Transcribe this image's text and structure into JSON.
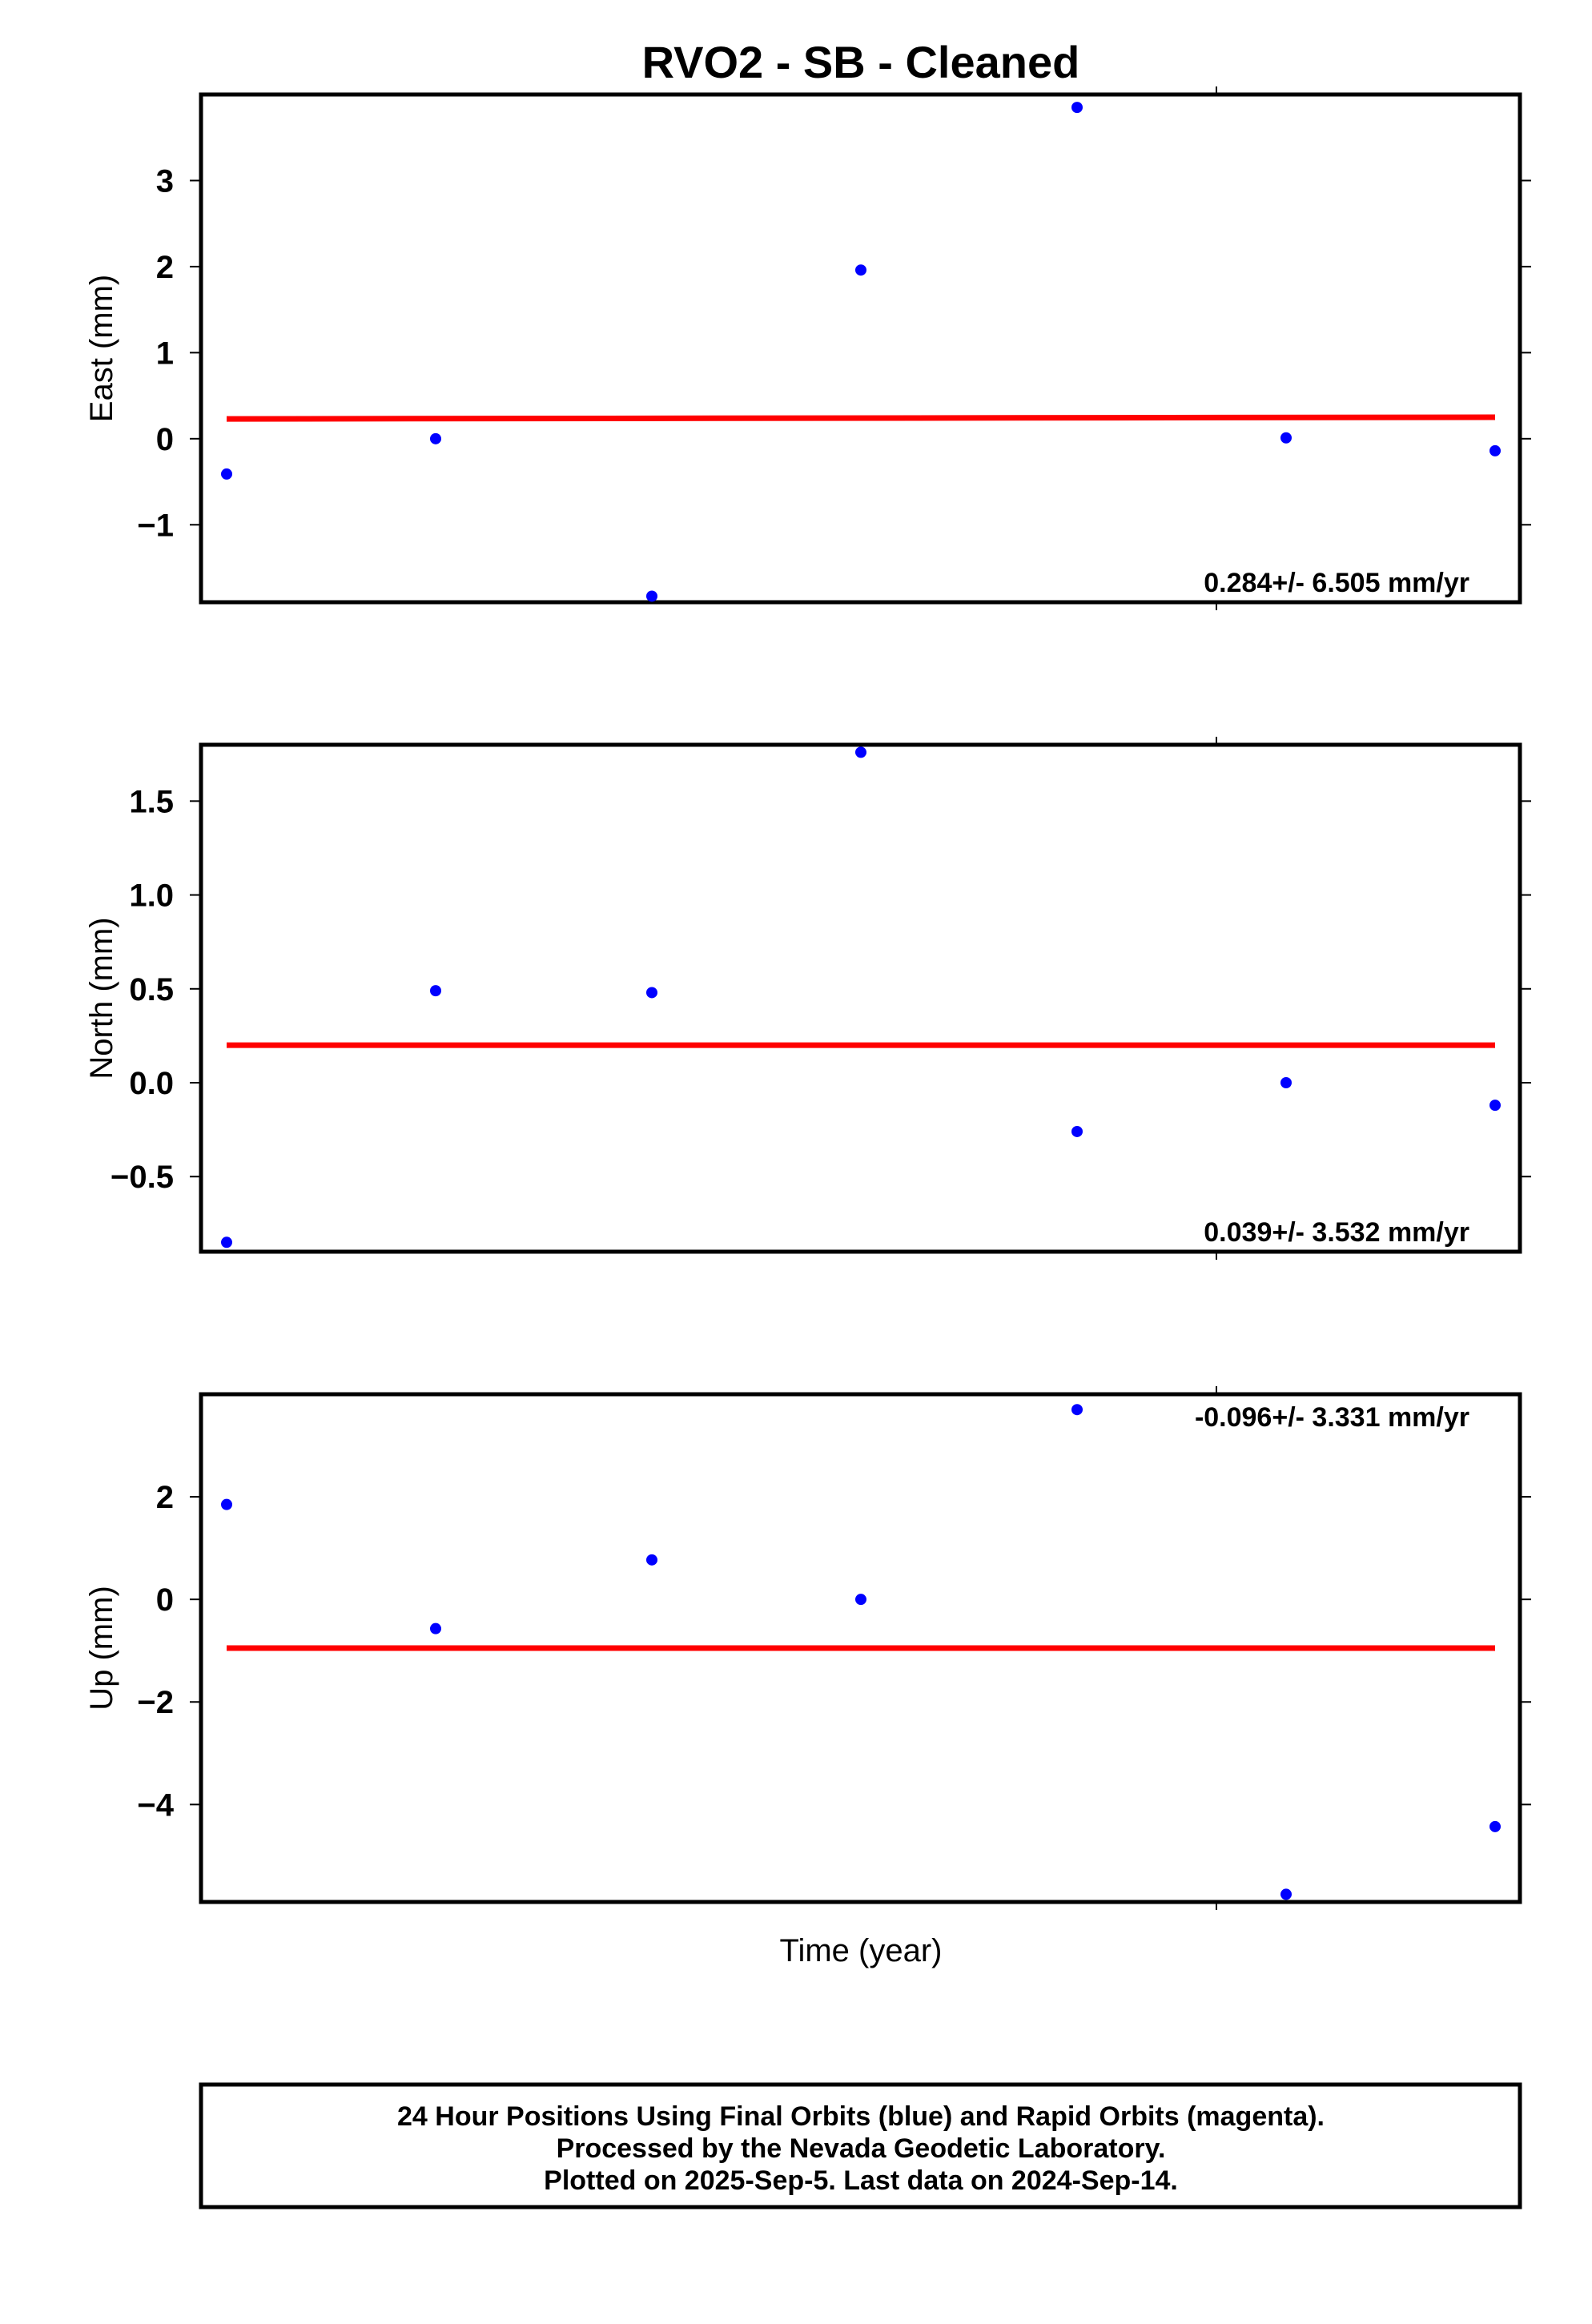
{
  "title": "RVO2  - SB - Cleaned",
  "xlabel": "Time (year)",
  "footer": [
    "24 Hour Positions Using Final Orbits (blue) and Rapid Orbits (magenta).",
    "Processed by the Nevada Geodetic Laboratory.",
    "Plotted on 2025-Sep-5. Last data on 2024-Sep-14."
  ],
  "colors": {
    "points": "#0000ff",
    "fit": "#ff0000",
    "frame": "#000000"
  },
  "chart_data": [
    {
      "type": "scatter",
      "ylabel": "East (mm)",
      "ylim": [
        -1.9,
        4.0
      ],
      "yticks": [
        -1,
        0,
        1,
        2,
        3
      ],
      "ytick_labels": [
        "−1",
        "0",
        "1",
        "2",
        "3"
      ],
      "rate_label": "0.284+/- 6.505 mm/yr",
      "rate_position": "bottom-right",
      "values": [
        -0.41,
        0.0,
        -1.83,
        1.96,
        3.85,
        0.01,
        -0.14
      ],
      "fit": [
        0.23,
        0.25
      ]
    },
    {
      "type": "scatter",
      "ylabel": "North (mm)",
      "ylim": [
        -0.9,
        1.8
      ],
      "yticks": [
        -0.5,
        0.0,
        0.5,
        1.0,
        1.5
      ],
      "ytick_labels": [
        "−0.5",
        "0.0",
        "0.5",
        "1.0",
        "1.5"
      ],
      "rate_label": "0.039+/- 3.532 mm/yr",
      "rate_position": "bottom-right",
      "values": [
        -0.85,
        0.49,
        0.48,
        1.76,
        -0.26,
        0.0,
        -0.12
      ],
      "fit": [
        0.2,
        0.2
      ]
    },
    {
      "type": "scatter",
      "ylabel": "Up (mm)",
      "ylim": [
        -5.9,
        4.0
      ],
      "yticks": [
        -4,
        -2,
        0,
        2
      ],
      "ytick_labels": [
        "−4",
        "−2",
        "0",
        "2"
      ],
      "rate_label": "-0.096+/- 3.331 mm/yr",
      "rate_position": "top-right",
      "values": [
        1.85,
        -0.57,
        0.77,
        0.0,
        3.7,
        -5.75,
        -4.43
      ],
      "fit": [
        -0.95,
        -0.95
      ]
    }
  ]
}
